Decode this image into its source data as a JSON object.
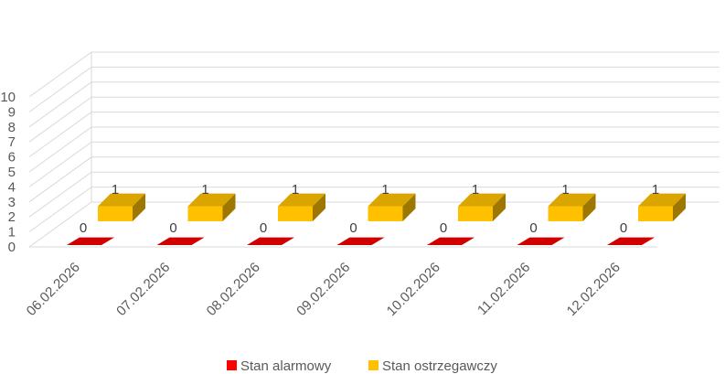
{
  "chart_data": {
    "type": "bar",
    "style": "3d-column",
    "categories": [
      "06.02.2026",
      "07.02.2026",
      "08.02.2026",
      "09.02.2026",
      "10.02.2026",
      "11.02.2026",
      "12.02.2026"
    ],
    "series": [
      {
        "name": "Stan alarmowy",
        "values": [
          0,
          0,
          0,
          0,
          0,
          0,
          0
        ],
        "color": "#ff0000"
      },
      {
        "name": "Stan ostrzegawczy",
        "values": [
          1,
          1,
          1,
          1,
          1,
          1,
          1
        ],
        "color": "#ffc000"
      }
    ],
    "ylim": [
      0,
      10
    ],
    "yticks": [
      0,
      1,
      2,
      3,
      4,
      5,
      6,
      7,
      8,
      9,
      10
    ],
    "grid": true,
    "data_labels": true,
    "legend_position": "bottom"
  }
}
